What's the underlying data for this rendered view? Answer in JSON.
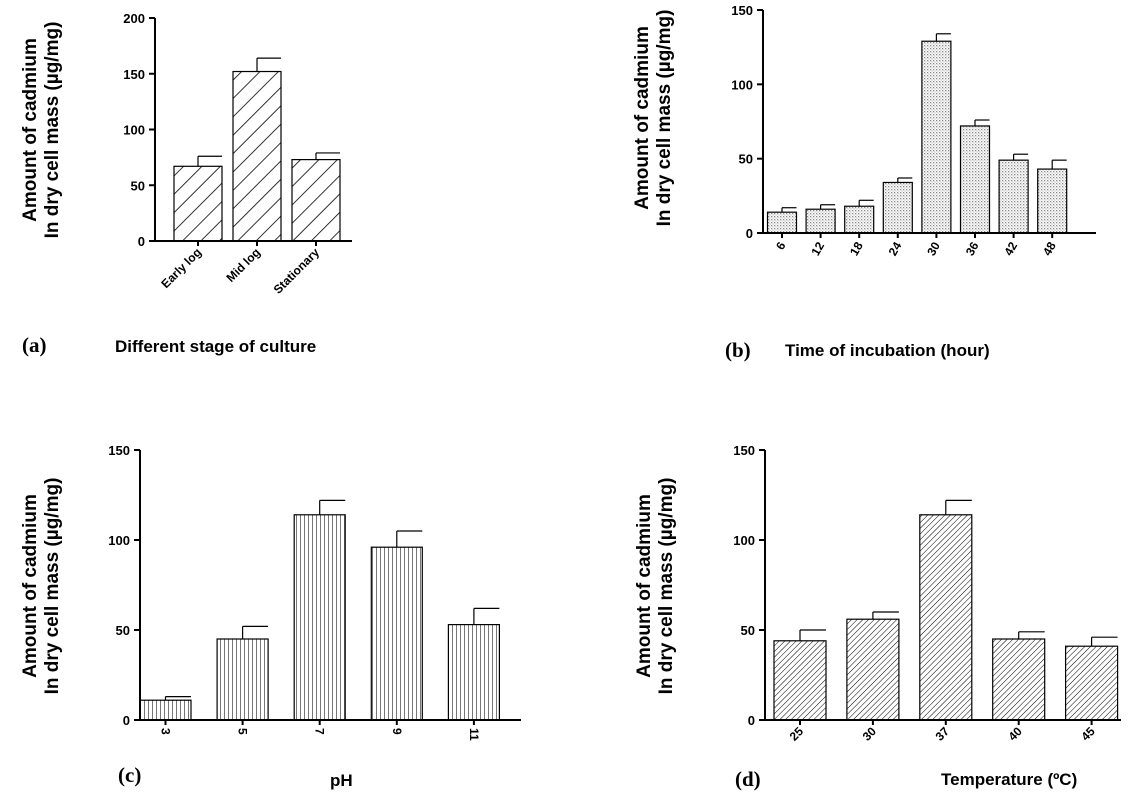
{
  "chart_data": [
    {
      "type": "bar",
      "panel_label": "(a)",
      "xlabel": "Different stage of culture",
      "ylabel": [
        "Amount of cadmium",
        "In dry cell mass (µg/mg)"
      ],
      "categories": [
        "Early log",
        "Mid log",
        "Stationary"
      ],
      "values": [
        67,
        152,
        73
      ],
      "errors": [
        9,
        12,
        6
      ],
      "ylim": [
        0,
        200
      ],
      "yticks": [
        0,
        50,
        100,
        150,
        200
      ],
      "pattern": "wide-diagonal",
      "grid": false
    },
    {
      "type": "bar",
      "panel_label": "(b)",
      "xlabel": "Time of incubation (hour)",
      "ylabel": [
        "Amount of cadmium",
        "In dry cell mass (µg/mg)"
      ],
      "categories": [
        "6",
        "12",
        "18",
        "24",
        "30",
        "36",
        "42",
        "48"
      ],
      "values": [
        14,
        16,
        18,
        34,
        129,
        72,
        49,
        43
      ],
      "errors": [
        3,
        3,
        4,
        3,
        5,
        4,
        4,
        6
      ],
      "ylim": [
        0,
        150
      ],
      "yticks": [
        0,
        50,
        100,
        150
      ],
      "pattern": "dots",
      "grid": false
    },
    {
      "type": "bar",
      "panel_label": "(c)",
      "xlabel": "pH",
      "ylabel": [
        "Amount of cadmium",
        "In dry cell mass (µg/mg)"
      ],
      "categories": [
        "3",
        "5",
        "7",
        "9",
        "11"
      ],
      "values": [
        11,
        45,
        114,
        96,
        53
      ],
      "errors": [
        2,
        7,
        8,
        9,
        9
      ],
      "ylim": [
        0,
        150
      ],
      "yticks": [
        0,
        50,
        100,
        150
      ],
      "pattern": "vertical",
      "grid": false
    },
    {
      "type": "bar",
      "panel_label": "(d)",
      "xlabel": "Temperature (ºC)",
      "ylabel": [
        "Amount of cadmium",
        "In dry cell mass (µg/mg)"
      ],
      "categories": [
        "25",
        "30",
        "37",
        "40",
        "45"
      ],
      "values": [
        44,
        56,
        114,
        45,
        41
      ],
      "errors": [
        6,
        4,
        8,
        4,
        5
      ],
      "ylim": [
        0,
        150
      ],
      "yticks": [
        0,
        50,
        100,
        150
      ],
      "pattern": "fine-diagonal",
      "grid": false
    }
  ]
}
